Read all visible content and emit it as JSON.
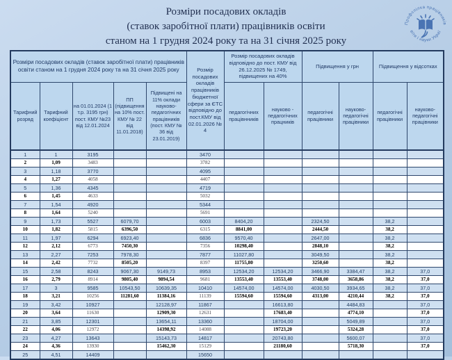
{
  "page": {
    "title_lines": [
      "Розміри посадових окладів",
      "(ставок заробітної плати) працівників освіти",
      "станом на  1 грудня 2024 року та на 31 січня 2025 року"
    ]
  },
  "logo": {
    "text_top": "Профспілка працівників",
    "text_bottom": "освіти і науки України"
  },
  "colors": {
    "background_top": "#cbdcf0",
    "background_bottom": "#a3bfdc",
    "header_fill": "#bdd7ee",
    "row_odd_fill": "#cfe0f1",
    "row_even_fill": "#ffffff",
    "border": "#2c456b",
    "logo_blue": "#4a74b3"
  },
  "table": {
    "group_headers": {
      "left": "Розміри посадових окладів (ставок заробітної плати) працівників освіти станом на  1 грудня 2024 року та на 31 січня 2025 року",
      "ets": "Розмір посадових окладів працівників бюджетної сфери за ЄТС відповідно до пост.КМУ від 02.01.2026 № 4",
      "kmu1749": "Розмір посадових окладів відповідно до пост. КМУ від 26.12.2025 № 1749, підвищених на 40%",
      "uah": "Підвищення  у грн",
      "pct": "Підвищення у відсотках"
    },
    "columns": [
      "Тарифний розряд",
      "Тарифний коефіцієнт",
      "на 01.01.2024 (1 т.р. 3195 грн) пост. КМУ №23 від 12.01.2024",
      "ПП (підвищення на 10% пост. КМУ № 22 від 11.01.2018)",
      "Підвищені на 11% оклади науково-педагогічних працівників (пост. КМУ № 36 від 23.01.2019)",
      "педагогічних працівнників",
      "науково - педагогічних працників",
      "педагогічні працівники",
      "науково-педагогічні працівники",
      "педагогічні працівники",
      "науково-педагогічні працівники"
    ],
    "rows": [
      [
        "1",
        "1",
        "3195",
        "",
        "",
        "3470",
        "",
        "",
        "",
        "",
        "",
        ""
      ],
      [
        "2",
        "1,09",
        "3483",
        "",
        "",
        "3782",
        "",
        "",
        "",
        "",
        "",
        ""
      ],
      [
        "3",
        "1,18",
        "3770",
        "",
        "",
        "4095",
        "",
        "",
        "",
        "",
        "",
        ""
      ],
      [
        "4",
        "1,27",
        "4058",
        "",
        "",
        "4407",
        "",
        "",
        "",
        "",
        "",
        ""
      ],
      [
        "5",
        "1,36",
        "4345",
        "",
        "",
        "4719",
        "",
        "",
        "",
        "",
        "",
        ""
      ],
      [
        "6",
        "1,45",
        "4633",
        "",
        "",
        "5032",
        "",
        "",
        "",
        "",
        "",
        ""
      ],
      [
        "7",
        "1,54",
        "4920",
        "",
        "",
        "5344",
        "",
        "",
        "",
        "",
        "",
        ""
      ],
      [
        "8",
        "1,64",
        "5240",
        "",
        "",
        "5691",
        "",
        "",
        "",
        "",
        "",
        ""
      ],
      [
        "9",
        "1,73",
        "5527",
        "6079,70",
        "",
        "6003",
        "8404,20",
        "",
        "2324,50",
        "",
        "38,2",
        ""
      ],
      [
        "10",
        "1,82",
        "5815",
        "6396,50",
        "",
        "6315",
        "8841,00",
        "",
        "2444,50",
        "",
        "38,2",
        ""
      ],
      [
        "11",
        "1,97",
        "6294",
        "6923,40",
        "",
        "6836",
        "9570,40",
        "",
        "2647,00",
        "",
        "38,2",
        ""
      ],
      [
        "12",
        "2,12",
        "6773",
        "7450,30",
        "",
        "7356",
        "10298,40",
        "",
        "2848,10",
        "",
        "38,2",
        ""
      ],
      [
        "13",
        "2,27",
        "7253",
        "7978,30",
        "",
        "7877",
        "11027,80",
        "",
        "3049,50",
        "",
        "38,2",
        ""
      ],
      [
        "14",
        "2,42",
        "7732",
        "8505,20",
        "",
        "8397",
        "11755,80",
        "",
        "3250,60",
        "",
        "38,2",
        ""
      ],
      [
        "15",
        "2,58",
        "8243",
        "9067,30",
        "9149,73",
        "8953",
        "12534,20",
        "12534,20",
        "3466,90",
        "3384,47",
        "38,2",
        "37,0"
      ],
      [
        "16",
        "2,79",
        "8914",
        "9805,40",
        "9894,54",
        "9681",
        "13553,40",
        "13553,40",
        "3748,00",
        "3658,86",
        "38,2",
        "37,0"
      ],
      [
        "17",
        "3",
        "9585",
        "10543,50",
        "10639,35",
        "10410",
        "14574,00",
        "14574,00",
        "4030,50",
        "3934,65",
        "38,2",
        "37,0"
      ],
      [
        "18",
        "3,21",
        "10256",
        "11281,60",
        "11384,16",
        "11139",
        "15594,60",
        "15594,60",
        "4313,00",
        "4210,44",
        "38,2",
        "37,0"
      ],
      [
        "19",
        "3,42",
        "10927",
        "",
        "12128,97",
        "11867",
        "",
        "16613,80",
        "",
        "4484,83",
        "",
        "37,0"
      ],
      [
        "20",
        "3,64",
        "11630",
        "",
        "12909,30",
        "12631",
        "",
        "17683,40",
        "",
        "4774,10",
        "",
        "37,0"
      ],
      [
        "21",
        "3,85",
        "12301",
        "",
        "13654,11",
        "13360",
        "",
        "18704,00",
        "",
        "5049,89",
        "",
        "37,0"
      ],
      [
        "22",
        "4,06",
        "12972",
        "",
        "14398,92",
        "14088",
        "",
        "19723,20",
        "",
        "5324,28",
        "",
        "37,0"
      ],
      [
        "23",
        "4,27",
        "13643",
        "",
        "15143,73",
        "14817",
        "",
        "20743,80",
        "",
        "5600,07",
        "",
        "37,0"
      ],
      [
        "24",
        "4,36",
        "13930",
        "",
        "15462,30",
        "15129",
        "",
        "21180,60",
        "",
        "5718,30",
        "",
        "37,0"
      ],
      [
        "25",
        "4,51",
        "14409",
        "",
        "",
        "15650",
        "",
        "",
        "",
        "",
        "",
        ""
      ]
    ]
  }
}
